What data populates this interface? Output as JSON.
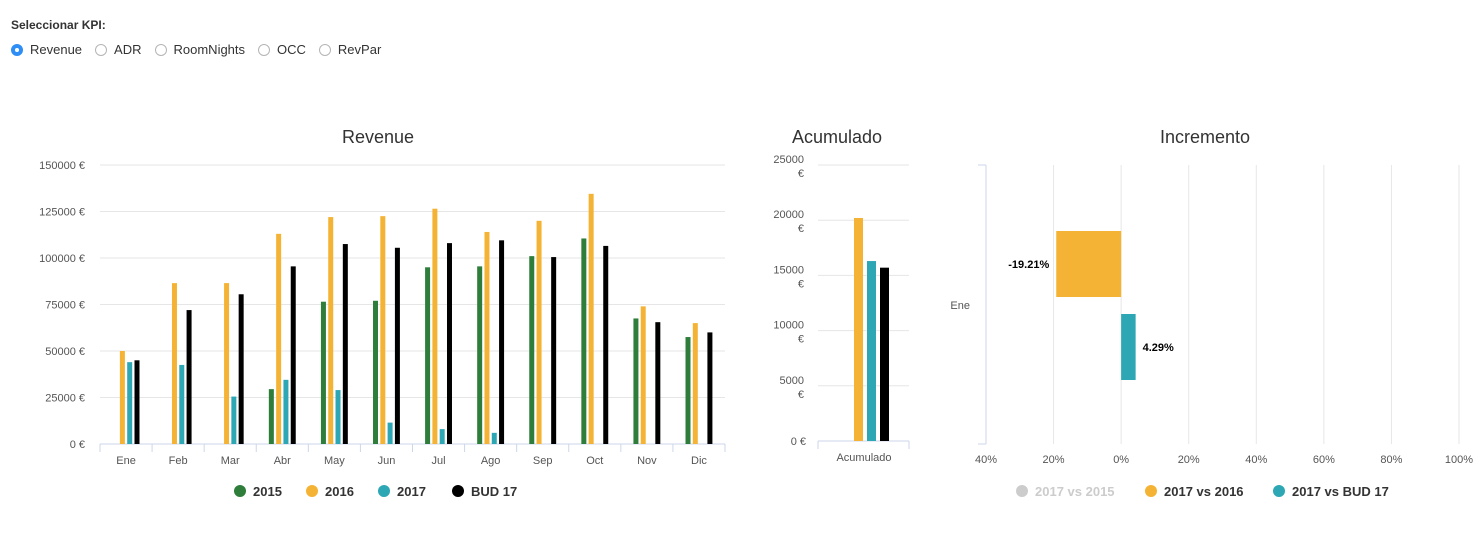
{
  "kpi_selector": {
    "label": "Seleccionar KPI:",
    "selected": "Revenue",
    "options": [
      "Revenue",
      "ADR",
      "RoomNights",
      "OCC",
      "RevPar"
    ]
  },
  "colors": {
    "2015": "#2e7d3a",
    "2016": "#f5b335",
    "2017": "#2ea7b5",
    "BUD 17": "#000000",
    "disabled": "#cccccc"
  },
  "chart_data": [
    {
      "type": "bar",
      "title": "Revenue",
      "categories": [
        "Ene",
        "Feb",
        "Mar",
        "Abr",
        "May",
        "Jun",
        "Jul",
        "Ago",
        "Sep",
        "Oct",
        "Nov",
        "Dic"
      ],
      "ylim": [
        0,
        150000
      ],
      "yticks": [
        "0 €",
        "25000 €",
        "50000 €",
        "75000 €",
        "100000 €",
        "125000 €",
        "150000 €"
      ],
      "legend_position": "bottom",
      "series": [
        {
          "name": "2015",
          "values": [
            null,
            null,
            null,
            29500,
            76500,
            77000,
            95000,
            95500,
            101000,
            110500,
            67500,
            57500
          ]
        },
        {
          "name": "2016",
          "values": [
            50000,
            86500,
            86500,
            113000,
            122000,
            122500,
            126500,
            114000,
            120000,
            134500,
            74000,
            65000
          ]
        },
        {
          "name": "2017",
          "values": [
            44000,
            42500,
            25500,
            34500,
            29000,
            11500,
            8000,
            6000,
            null,
            null,
            null,
            null
          ]
        },
        {
          "name": "BUD 17",
          "values": [
            45000,
            72000,
            80500,
            95500,
            107500,
            105500,
            108000,
            109500,
            100500,
            106500,
            65500,
            60000
          ]
        }
      ]
    },
    {
      "type": "bar",
      "title": "Acumulado",
      "categories": [
        "Acumulado"
      ],
      "ylim": [
        0,
        25000
      ],
      "yticks": [
        "0 €",
        "5000 €",
        "10000 €",
        "15000 €",
        "20000 €",
        "25000 €"
      ],
      "series": [
        {
          "name": "2016",
          "values": [
            20200
          ]
        },
        {
          "name": "2017",
          "values": [
            16300
          ]
        },
        {
          "name": "BUD 17",
          "values": [
            15700
          ]
        }
      ]
    },
    {
      "type": "bar",
      "orientation": "horizontal",
      "title": "Incremento",
      "categories": [
        "Ene"
      ],
      "xlim": [
        -40,
        100
      ],
      "xticks": [
        "40%",
        "20%",
        "0%",
        "20%",
        "40%",
        "60%",
        "80%",
        "100%"
      ],
      "legend_position": "bottom",
      "series": [
        {
          "name": "2017 vs 2015",
          "values": [
            null
          ],
          "labels": [
            ""
          ],
          "hidden": true
        },
        {
          "name": "2017 vs 2016",
          "values": [
            -19.21
          ],
          "labels": [
            "-19.21%"
          ]
        },
        {
          "name": "2017 vs BUD 17",
          "values": [
            4.29
          ],
          "labels": [
            "4.29%"
          ]
        }
      ]
    }
  ]
}
